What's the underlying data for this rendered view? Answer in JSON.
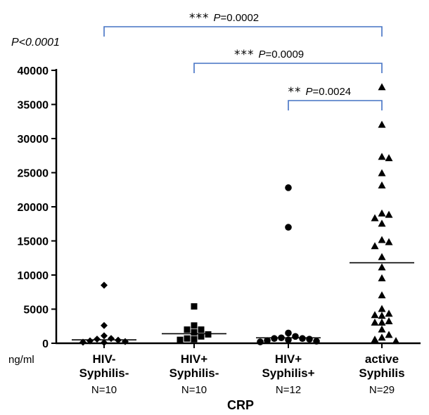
{
  "chart_data": {
    "type": "scatter",
    "categories": [
      [
        "HIV-",
        "Syphilis-"
      ],
      [
        "HIV+",
        "Syphilis-"
      ],
      [
        "HIV+",
        "Syphilis+"
      ],
      [
        "active",
        "Syphilis"
      ]
    ],
    "group_n": [
      "N=10",
      "N=10",
      "N=12",
      "N=29"
    ],
    "xlabel": "CRP",
    "unit_label": "ng/ml",
    "overall_p": "P<0.0001",
    "ylim": [
      0,
      40000
    ],
    "yticks": [
      "0",
      "5000",
      "10000",
      "15000",
      "20000",
      "25000",
      "30000",
      "35000",
      "40000"
    ],
    "series": [
      {
        "marker": "diamond",
        "values": [
          8500,
          2600,
          1100,
          700,
          600,
          450,
          350,
          250,
          150,
          100
        ],
        "median": 500
      },
      {
        "marker": "square",
        "values": [
          5400,
          2600,
          2000,
          2000,
          1600,
          1300,
          1000,
          700,
          600,
          500
        ],
        "median": 1400
      },
      {
        "marker": "circle",
        "values": [
          22800,
          17000,
          1500,
          1000,
          800,
          700,
          700,
          600,
          500,
          400,
          300,
          200
        ],
        "median": 800
      },
      {
        "marker": "triangle",
        "values": [
          37500,
          32000,
          27300,
          27100,
          24900,
          23100,
          19000,
          18800,
          18300,
          17500,
          15100,
          14800,
          14200,
          12600,
          11100,
          9500,
          7000,
          5000,
          4300,
          4100,
          4000,
          3200,
          3000,
          3000,
          2000,
          1200,
          800,
          500,
          300
        ],
        "median": 11800
      }
    ],
    "comparisons": [
      {
        "from": 0,
        "to": 3,
        "stars": "***",
        "p_label": "P",
        "p_value": "=0.0002"
      },
      {
        "from": 1,
        "to": 3,
        "stars": "***",
        "p_label": "P",
        "p_value": "=0.0009"
      },
      {
        "from": 2,
        "to": 3,
        "stars": "**",
        "p_label": "P",
        "p_value": "=0.0024"
      }
    ],
    "bracket_color": "#4472c4"
  }
}
